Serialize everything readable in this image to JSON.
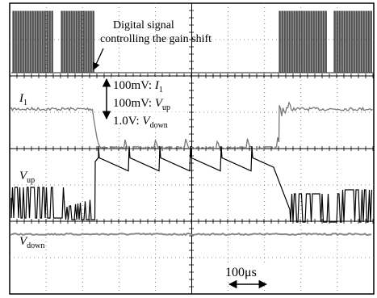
{
  "annotation": {
    "lines": [
      "Digital signal",
      "controlling the gain shift"
    ]
  },
  "scale_settings": [
    {
      "prefix": "100mV: ",
      "symbol": "I",
      "sub": "1"
    },
    {
      "prefix": "100mV: ",
      "symbol": "V",
      "sub": "up"
    },
    {
      "prefix": "1.0V: ",
      "symbol": "V",
      "sub": "down"
    }
  ],
  "trace_labels": [
    {
      "symbol": "I",
      "sub": "1"
    },
    {
      "symbol": "V",
      "sub": "up"
    },
    {
      "symbol": "V",
      "sub": "down"
    }
  ],
  "time_scale": "100μs"
}
